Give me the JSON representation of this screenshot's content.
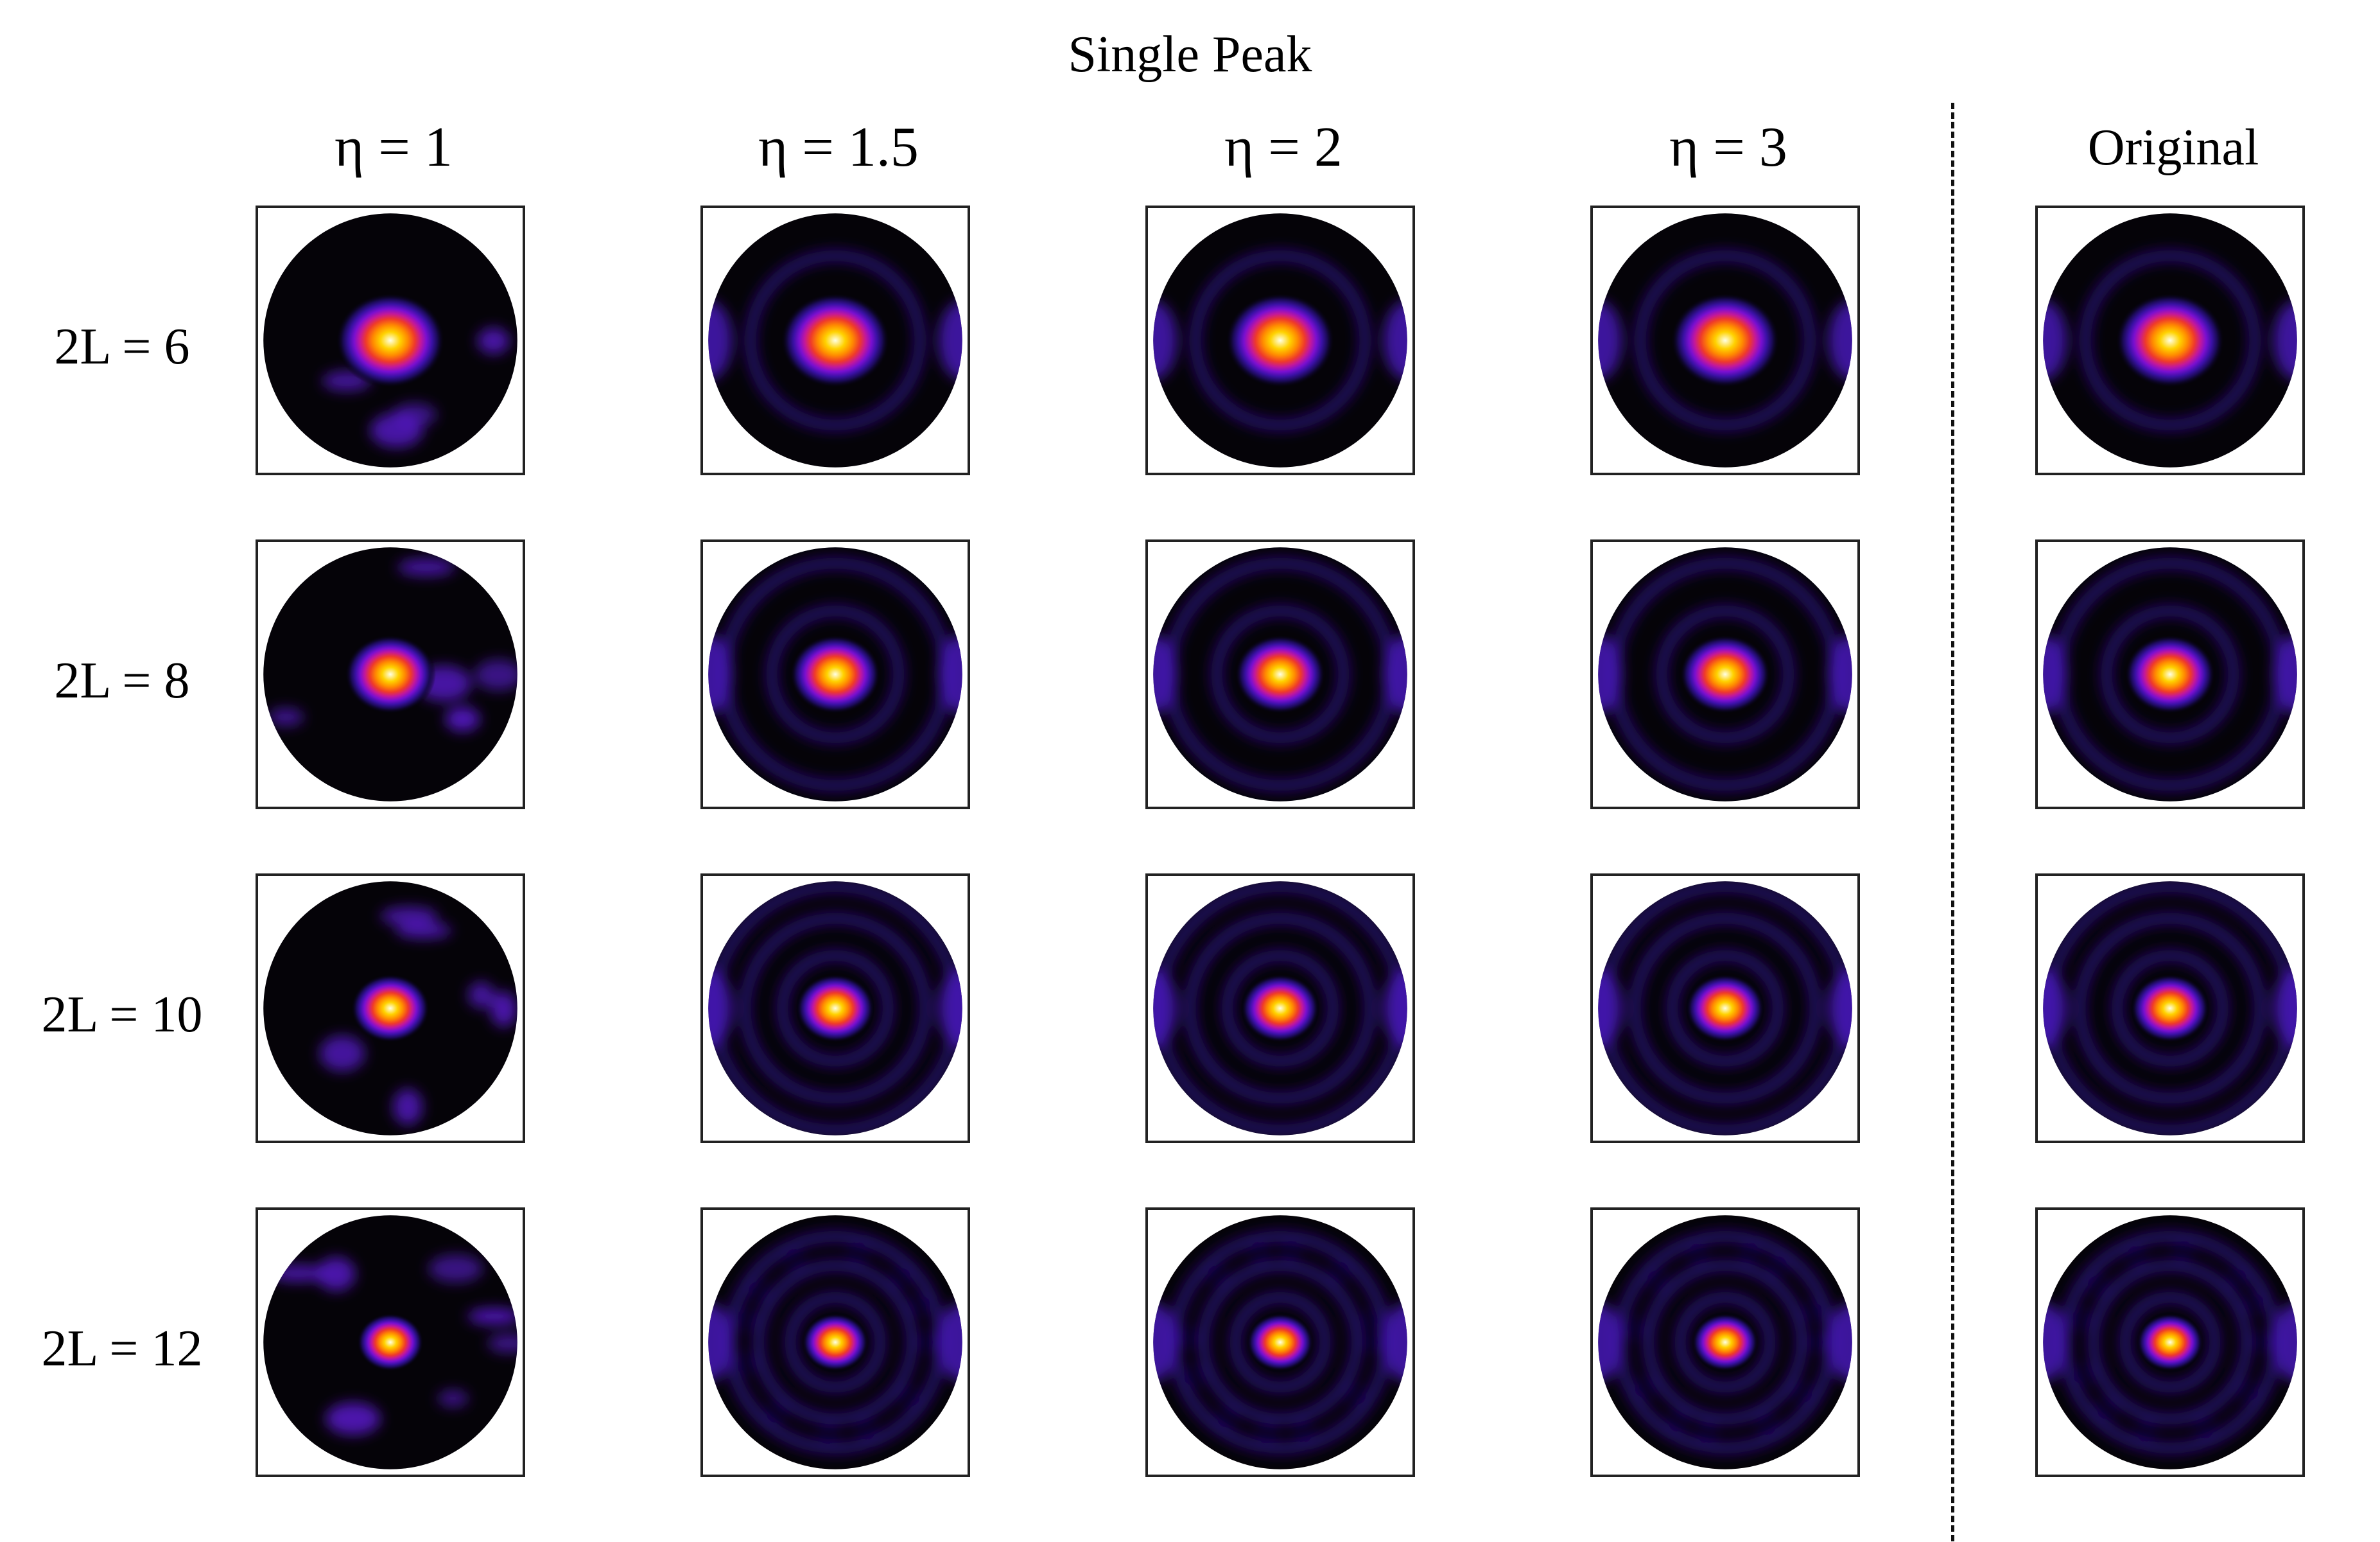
{
  "figure": {
    "title": "Single Peak",
    "columns": [
      {
        "label": "η = 1",
        "kind": "reconstruction",
        "eta": 1
      },
      {
        "label": "η = 1.5",
        "kind": "reconstruction",
        "eta": 1.5
      },
      {
        "label": "η = 2",
        "kind": "reconstruction",
        "eta": 2
      },
      {
        "label": "η = 3",
        "kind": "reconstruction",
        "eta": 3
      },
      {
        "label": "Original",
        "kind": "original"
      }
    ],
    "rows": [
      {
        "label": "2L = 6",
        "order": 6
      },
      {
        "label": "2L = 8",
        "order": 8
      },
      {
        "label": "2L = 10",
        "order": 10
      },
      {
        "label": "2L = 12",
        "order": 12
      }
    ],
    "colormap": {
      "name": "gnuplot-like",
      "stops": [
        "#000000",
        "#1a0a55",
        "#3b11a6",
        "#7a0fd0",
        "#c2179c",
        "#ef3a2a",
        "#ff8a00",
        "#ffd200",
        "#ffffe6"
      ]
    },
    "separator": "dashed vertical line between η = 3 and Original"
  }
}
